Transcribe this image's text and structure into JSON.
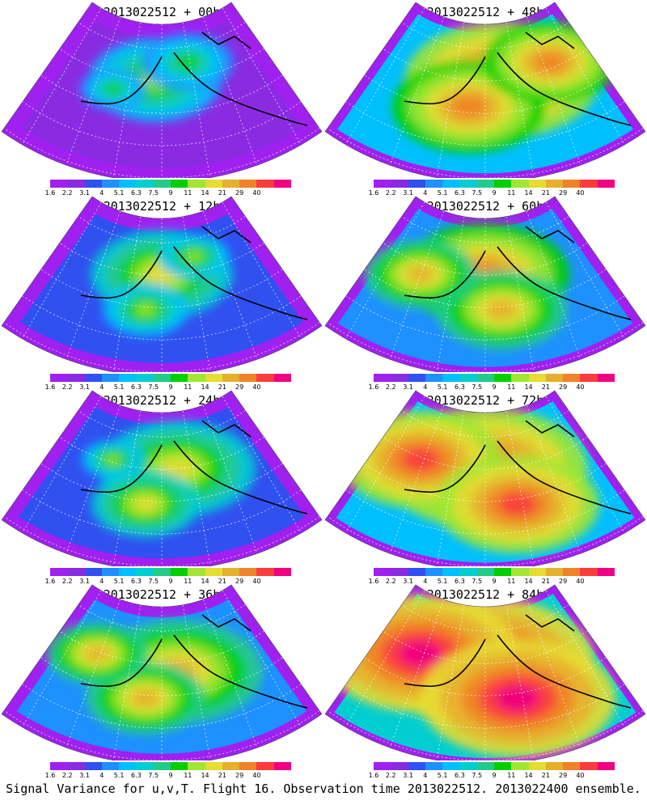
{
  "panels": [
    {
      "title": "2013022512 + 00h",
      "hot": [
        [
          0.48,
          0.45,
          1.0
        ],
        [
          0.58,
          0.35,
          0.7
        ],
        [
          0.35,
          0.5,
          0.5
        ]
      ],
      "level": 0.18
    },
    {
      "title": "2013022512 + 48h",
      "hot": [
        [
          0.55,
          0.45,
          1.0
        ],
        [
          0.45,
          0.6,
          0.8
        ],
        [
          0.7,
          0.35,
          0.7
        ]
      ],
      "level": 0.62
    },
    {
      "title": "2013022512 + 12h",
      "hot": [
        [
          0.5,
          0.45,
          1.0
        ],
        [
          0.45,
          0.65,
          0.6
        ],
        [
          0.6,
          0.35,
          0.5
        ]
      ],
      "level": 0.25
    },
    {
      "title": "2013022512 + 60h",
      "hot": [
        [
          0.5,
          0.45,
          0.9
        ],
        [
          0.55,
          0.65,
          0.7
        ],
        [
          0.3,
          0.45,
          0.6
        ]
      ],
      "level": 0.58
    },
    {
      "title": "2013022512 + 24h",
      "hot": [
        [
          0.55,
          0.45,
          1.0
        ],
        [
          0.45,
          0.65,
          0.7
        ],
        [
          0.35,
          0.4,
          0.4
        ]
      ],
      "level": 0.35
    },
    {
      "title": "2013022512 + 72h",
      "hot": [
        [
          0.5,
          0.45,
          1.0
        ],
        [
          0.3,
          0.4,
          0.8
        ],
        [
          0.6,
          0.65,
          0.8
        ]
      ],
      "level": 0.7
    },
    {
      "title": "2013022512 + 36h",
      "hot": [
        [
          0.55,
          0.5,
          1.0
        ],
        [
          0.45,
          0.65,
          0.7
        ],
        [
          0.3,
          0.4,
          0.6
        ]
      ],
      "level": 0.45
    },
    {
      "title": "2013022512 + 84h",
      "hot": [
        [
          0.5,
          0.45,
          1.0
        ],
        [
          0.3,
          0.4,
          0.9
        ],
        [
          0.6,
          0.65,
          0.9
        ]
      ],
      "level": 0.8
    }
  ],
  "colorbar": {
    "labels": [
      "1.6",
      "2.2",
      "3.1",
      "4",
      "5.1",
      "6.3",
      "7.5",
      "9",
      "11",
      "14",
      "21",
      "29",
      "40"
    ],
    "colors": [
      "#a020f0",
      "#8a2be2",
      "#3050f0",
      "#1e90ff",
      "#00bfff",
      "#00ced1",
      "#22cc88",
      "#00d000",
      "#a0e632",
      "#e6dc32",
      "#e6af2d",
      "#f08228",
      "#fa3c3c",
      "#f00082"
    ]
  },
  "caption": "Signal Variance for u,v,T. Flight 16. Observation time 2013022512. 2013022400 ensemble."
}
